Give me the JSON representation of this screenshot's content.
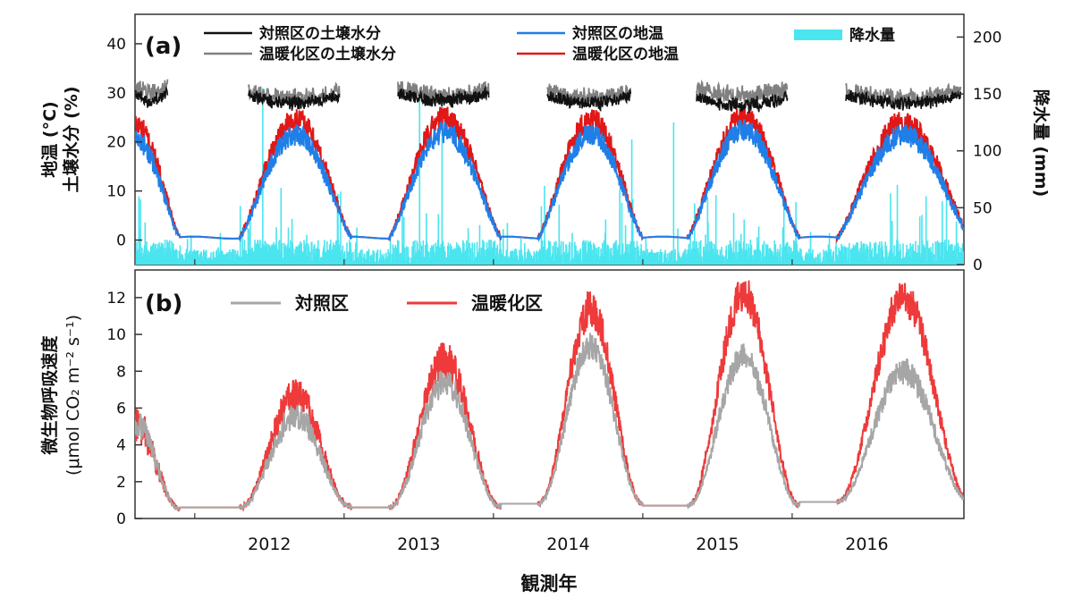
{
  "chart_data": [
    {
      "panel": "(a)",
      "type": "line",
      "ylabel_left": [
        "地温 (°C)",
        "土壌水分 (%)"
      ],
      "ylabel_right": "降水量 (mm)",
      "ylim_left": [
        -5,
        46
      ],
      "yticks_left": [
        0,
        10,
        20,
        30,
        40
      ],
      "ylim_right": [
        0,
        220
      ],
      "yticks_right": [
        0,
        50,
        100,
        150,
        200
      ],
      "x_range": [
        2011.0,
        2016.55
      ],
      "x_axis_label": "観測年",
      "x_tick_labels": [
        {
          "x": 2011.9,
          "label": "2012"
        },
        {
          "x": 2012.9,
          "label": "2013"
        },
        {
          "x": 2013.9,
          "label": "2014"
        },
        {
          "x": 2014.9,
          "label": "2015"
        },
        {
          "x": 2015.9,
          "label": "2016"
        }
      ],
      "x_minor_ticks": [
        2011.4,
        2012.4,
        2013.4,
        2014.4,
        2015.4
      ],
      "legend": [
        {
          "key": "sm_control",
          "label": "対照区の土壌水分",
          "color": "#111111"
        },
        {
          "key": "sm_warming",
          "label": "温暖化区の土壌水分",
          "color": "#808080"
        },
        {
          "key": "st_control",
          "label": "対照区の地温",
          "color": "#1f7fe8"
        },
        {
          "key": "st_warming",
          "label": "温暖化区の地温",
          "color": "#e01818"
        },
        {
          "key": "precip",
          "label": "降水量",
          "color": "#4ae5ef"
        }
      ],
      "season_model": {
        "winter_base_temp": 0.5,
        "summer_peak_temp_control": [
          20.5,
          21.5,
          22,
          21.5,
          22.5,
          21.5
        ],
        "summer_peak_temp_warming": [
          23.5,
          24.5,
          25,
          24.5,
          25,
          24
        ],
        "growing_seasons": [
          {
            "start": 2011.0,
            "end": 2011.3
          },
          {
            "start": 2011.7,
            "end": 2012.45
          },
          {
            "start": 2012.7,
            "end": 2013.45
          },
          {
            "start": 2013.7,
            "end": 2014.4
          },
          {
            "start": 2014.7,
            "end": 2015.45
          },
          {
            "start": 2015.7,
            "end": 2016.55
          }
        ],
        "soil_moisture_control_mean": [
          30,
          29.5,
          30,
          29.5,
          29,
          29.5
        ],
        "soil_moisture_warming_mean": [
          31.5,
          30.5,
          31,
          30.5,
          31,
          30.5
        ]
      },
      "precip_spikes": [
        {
          "x": 2011.02,
          "mm": 60
        },
        {
          "x": 2011.85,
          "mm": 155
        },
        {
          "x": 2012.9,
          "mm": 150
        },
        {
          "x": 2013.05,
          "mm": 140
        },
        {
          "x": 2014.6,
          "mm": 125
        },
        {
          "x": 2014.32,
          "mm": 110
        },
        {
          "x": 2015.42,
          "mm": 55
        },
        {
          "x": 2016.1,
          "mm": 70
        }
      ]
    },
    {
      "panel": "(b)",
      "type": "line",
      "ylabel": [
        "微生物呼吸速度",
        "(μmol CO₂ m⁻² s⁻¹)"
      ],
      "ylim": [
        0,
        13.5
      ],
      "yticks": [
        0,
        2,
        4,
        6,
        8,
        10,
        12
      ],
      "legend": [
        {
          "key": "resp_control",
          "label": "対照区",
          "color": "#a6a6a6"
        },
        {
          "key": "resp_warming",
          "label": "温暖化区",
          "color": "#ee3a3a"
        }
      ],
      "peak_control": [
        5.2,
        5.6,
        7.4,
        9.4,
        8.8,
        8.0
      ],
      "peak_warming": [
        5.2,
        6.6,
        8.6,
        11.4,
        12.2,
        12.0
      ],
      "winter_base": [
        0.55,
        0.6,
        0.6,
        0.8,
        0.7,
        0.9
      ]
    }
  ]
}
